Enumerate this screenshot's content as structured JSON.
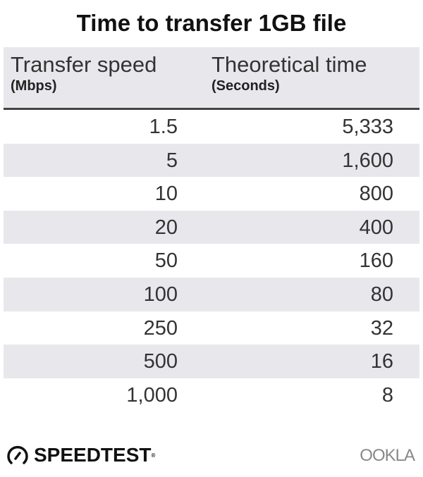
{
  "chart_data": {
    "type": "table",
    "title": "Time to transfer 1GB file",
    "columns": [
      {
        "label": "Transfer speed",
        "unit": "(Mbps)"
      },
      {
        "label": "Theoretical time",
        "unit": "(Seconds)"
      }
    ],
    "rows": [
      [
        "1.5",
        "5,333"
      ],
      [
        "5",
        "1,600"
      ],
      [
        "10",
        "800"
      ],
      [
        "20",
        "400"
      ],
      [
        "50",
        "160"
      ],
      [
        "100",
        "80"
      ],
      [
        "250",
        "32"
      ],
      [
        "500",
        "16"
      ],
      [
        "1,000",
        "8"
      ]
    ],
    "colors": {
      "stripe": "#e8e7ec",
      "rule": "#444444"
    }
  },
  "branding": {
    "speedtest": "SPEEDTEST",
    "ookla": "OOKLA",
    "icon": "speedometer-icon"
  }
}
